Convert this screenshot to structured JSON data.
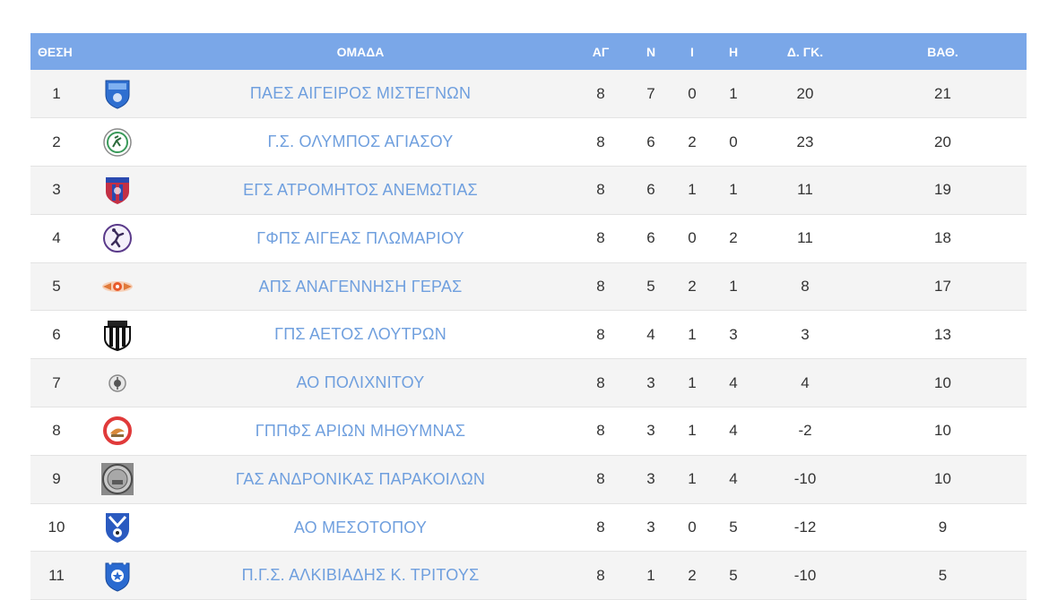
{
  "columns": {
    "position": "ΘΕΣΗ",
    "team": "ΟΜΑΔΑ",
    "played": "ΑΓ",
    "wins": "Ν",
    "draws": "Ι",
    "losses": "Η",
    "goal_diff": "Δ. ΓΚ.",
    "points": "ΒΑΘ."
  },
  "rows": [
    {
      "pos": "1",
      "team": "ΠΑΕΣ ΑΙΓΕΙΡΟΣ ΜΙΣΤΕΓΝΩΝ",
      "played": "8",
      "wins": "7",
      "draws": "0",
      "losses": "1",
      "gd": "20",
      "pts": "21",
      "logo": "blue-shield-crest-icon"
    },
    {
      "pos": "2",
      "team": "Γ.Σ. ΟΛΥΜΠΟΣ ΑΓΙΑΣΟΥ",
      "played": "8",
      "wins": "6",
      "draws": "2",
      "losses": "0",
      "gd": "23",
      "pts": "20",
      "logo": "green-runner-circle-crest-icon"
    },
    {
      "pos": "3",
      "team": "ΕΓΣ ΑΤΡΟΜΗΤΟΣ ΑΝΕΜΩΤΙΑΣ",
      "played": "8",
      "wins": "6",
      "draws": "1",
      "losses": "1",
      "gd": "11",
      "pts": "19",
      "logo": "red-blue-shield-crest-icon"
    },
    {
      "pos": "4",
      "team": "ΓΦΠΣ ΑΙΓΕΑΣ ΠΛΩΜΑΡΙΟΥ",
      "played": "8",
      "wins": "6",
      "draws": "0",
      "losses": "2",
      "gd": "11",
      "pts": "18",
      "logo": "purple-circle-athlete-crest-icon"
    },
    {
      "pos": "5",
      "team": "ΑΠΣ ΑΝΑΓΕΝΝΗΣΗ ΓΕΡΑΣ",
      "played": "8",
      "wins": "5",
      "draws": "2",
      "losses": "1",
      "gd": "8",
      "pts": "17",
      "logo": "orange-winged-crest-icon"
    },
    {
      "pos": "6",
      "team": "ΓΠΣ ΑΕΤΟΣ ΛΟΥΤΡΩΝ",
      "played": "8",
      "wins": "4",
      "draws": "1",
      "losses": "3",
      "gd": "3",
      "pts": "13",
      "logo": "black-white-striped-crest-icon"
    },
    {
      "pos": "7",
      "team": "ΑΟ ΠΟΛΙΧΝΙΤΟΥ",
      "played": "8",
      "wins": "3",
      "draws": "1",
      "losses": "4",
      "gd": "4",
      "pts": "10",
      "logo": "grey-round-crest-icon"
    },
    {
      "pos": "8",
      "team": "ΓΠΠΦΣ ΑΡΙΩΝ ΜΗΘΥΜΝΑΣ",
      "played": "8",
      "wins": "3",
      "draws": "1",
      "losses": "4",
      "gd": "-2",
      "pts": "10",
      "logo": "red-ring-dolphin-crest-icon"
    },
    {
      "pos": "9",
      "team": "ΓΑΣ ΑΝΔΡΟΝΙΚΑΣ ΠΑΡΑΚΟΙΛΩΝ",
      "played": "8",
      "wins": "3",
      "draws": "1",
      "losses": "4",
      "gd": "-10",
      "pts": "10",
      "logo": "grey-coin-crest-icon"
    },
    {
      "pos": "10",
      "team": "ΑΟ ΜΕΣΟΤΟΠΟΥ",
      "played": "8",
      "wins": "3",
      "draws": "0",
      "losses": "5",
      "gd": "-12",
      "pts": "9",
      "logo": "blue-ball-shield-crest-icon"
    },
    {
      "pos": "11",
      "team": "Π.Γ.Σ. ΑΛΚΙΒΙΑΔΗΣ Κ. ΤΡΙΤΟΥΣ",
      "played": "8",
      "wins": "1",
      "draws": "2",
      "losses": "5",
      "gd": "-10",
      "pts": "5",
      "logo": "blue-star-shield-crest-icon"
    }
  ],
  "colors": {
    "header_bg": "#7aa7e8",
    "header_text": "#ffffff",
    "team_link": "#6f9fde",
    "row_alt": "#f4f4f4"
  }
}
